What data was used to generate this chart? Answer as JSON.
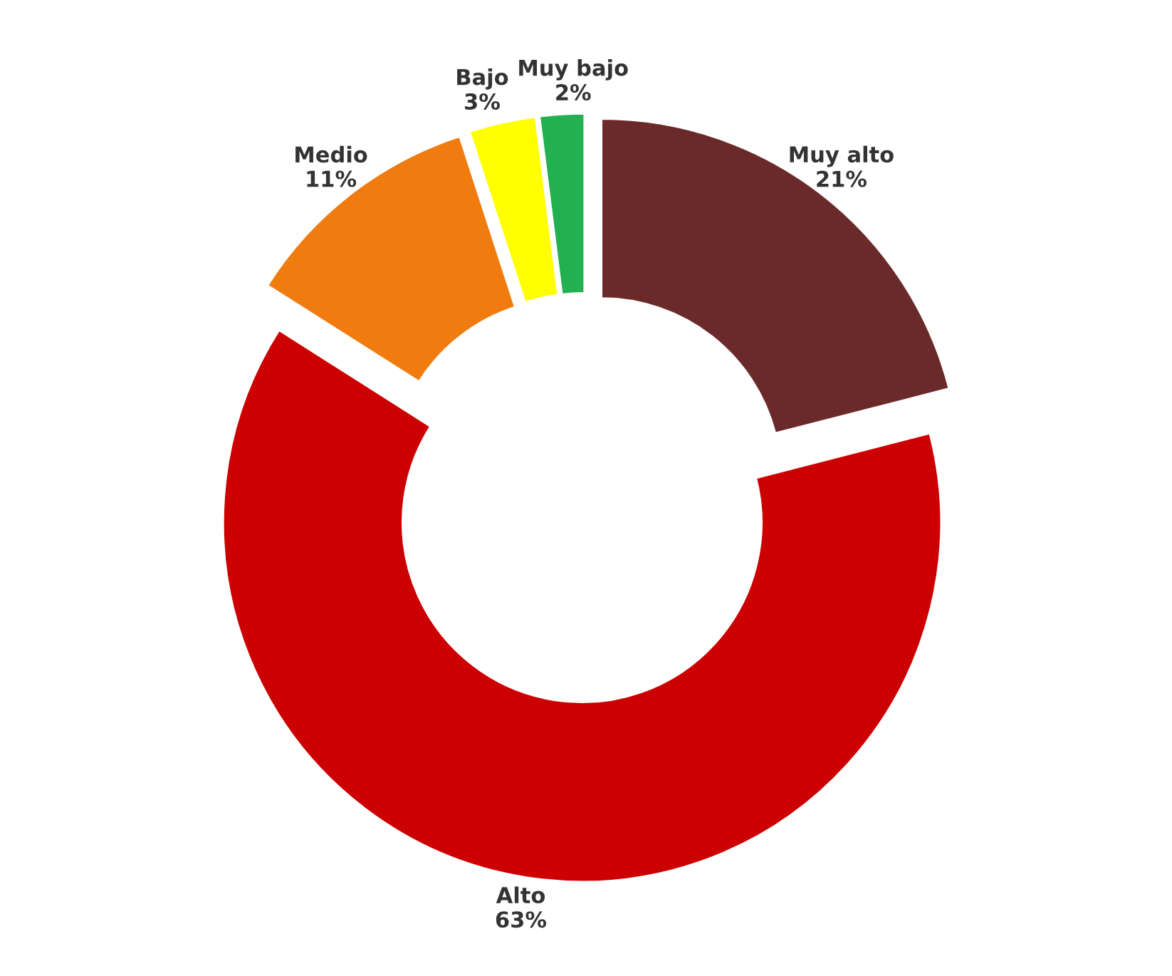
{
  "chart_data": {
    "type": "donut",
    "categories": [
      "Muy alto",
      "Alto",
      "Medio",
      "Bajo",
      "Muy bajo"
    ],
    "values": [
      21,
      63,
      11,
      3,
      2
    ],
    "value_labels": [
      "21%",
      "63%",
      "11%",
      "3%",
      "2%"
    ],
    "colors": [
      "#6b2a2a",
      "#cc0000",
      "#f07c10",
      "#ffff00",
      "#22b050"
    ],
    "legend": false
  }
}
